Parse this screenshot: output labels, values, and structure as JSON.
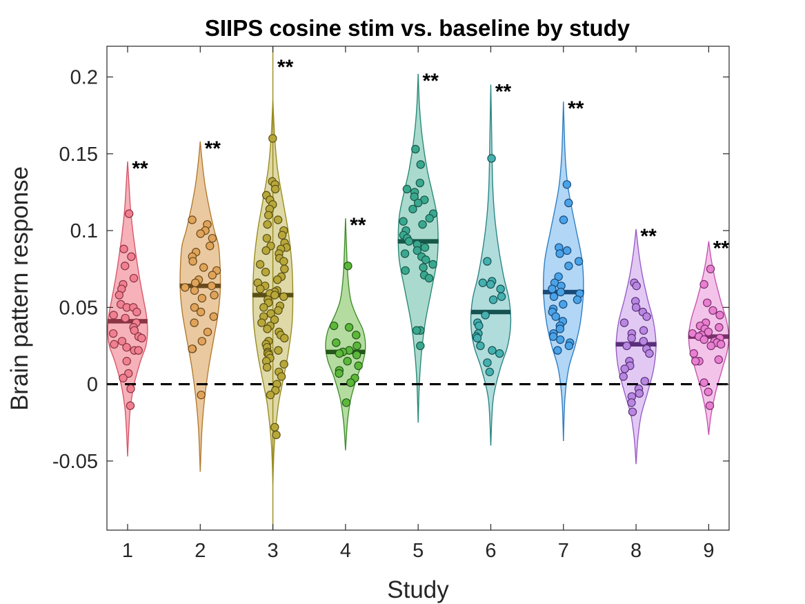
{
  "chart_data": {
    "type": "violin",
    "title": "SIIPS cosine stim vs. baseline by study",
    "xlabel": "Study",
    "ylabel": "Brain pattern response",
    "categories": [
      "1",
      "2",
      "3",
      "4",
      "5",
      "6",
      "7",
      "8",
      "9"
    ],
    "ylim": [
      -0.095,
      0.22
    ],
    "yticks": [
      -0.05,
      0,
      0.05,
      0.1,
      0.15,
      0.2
    ],
    "ytick_labels": [
      "-0.05",
      "0",
      "0.05",
      "0.1",
      "0.15",
      "0.2"
    ],
    "reference_line": {
      "y": 0,
      "style": "dashed",
      "color": "#000000"
    },
    "grid": false,
    "series": [
      {
        "category": "1",
        "fill": "#f4a3ad",
        "stroke": "#d9566a",
        "dot": "#f08091",
        "median_color": "#8a3444",
        "median": 0.041,
        "significance": "**",
        "range": [
          -0.047,
          0.145
        ],
        "density": [
          [
            -0.047,
            0.0
          ],
          [
            -0.03,
            0.05
          ],
          [
            -0.015,
            0.12
          ],
          [
            0.0,
            0.28
          ],
          [
            0.015,
            0.55
          ],
          [
            0.025,
            0.78
          ],
          [
            0.035,
            0.85
          ],
          [
            0.045,
            0.8
          ],
          [
            0.055,
            0.68
          ],
          [
            0.07,
            0.5
          ],
          [
            0.085,
            0.35
          ],
          [
            0.1,
            0.22
          ],
          [
            0.115,
            0.12
          ],
          [
            0.13,
            0.06
          ],
          [
            0.145,
            0.0
          ]
        ],
        "points": [
          0.111,
          0.088,
          0.083,
          0.077,
          0.069,
          0.065,
          0.062,
          0.058,
          0.052,
          0.05,
          0.05,
          0.047,
          0.045,
          0.043,
          0.04,
          0.037,
          0.035,
          0.033,
          0.031,
          0.03,
          0.028,
          0.026,
          0.024,
          0.022,
          0.022,
          0.015,
          0.007,
          0.004,
          -0.003,
          -0.014
        ]
      },
      {
        "category": "2",
        "fill": "#e8c08f",
        "stroke": "#b37a2f",
        "dot": "#e0a35a",
        "median_color": "#6a4a1c",
        "median": 0.064,
        "significance": "**",
        "range": [
          -0.057,
          0.158
        ],
        "density": [
          [
            -0.057,
            0.0
          ],
          [
            -0.03,
            0.07
          ],
          [
            -0.01,
            0.18
          ],
          [
            0.01,
            0.35
          ],
          [
            0.03,
            0.58
          ],
          [
            0.045,
            0.75
          ],
          [
            0.06,
            0.85
          ],
          [
            0.075,
            0.85
          ],
          [
            0.09,
            0.78
          ],
          [
            0.1,
            0.6
          ],
          [
            0.115,
            0.38
          ],
          [
            0.13,
            0.2
          ],
          [
            0.145,
            0.08
          ],
          [
            0.158,
            0.0
          ]
        ],
        "points": [
          0.107,
          0.104,
          0.1,
          0.098,
          0.095,
          0.09,
          0.086,
          0.083,
          0.08,
          0.076,
          0.074,
          0.071,
          0.068,
          0.066,
          0.064,
          0.063,
          0.061,
          0.058,
          0.056,
          0.05,
          0.047,
          0.044,
          0.04,
          0.034,
          0.028,
          0.023,
          0.023,
          -0.007
        ]
      },
      {
        "category": "3",
        "fill": "#d9d198",
        "stroke": "#9a8c1e",
        "dot": "#b8a83a",
        "median_color": "#5a5014",
        "median": 0.058,
        "significance": "**",
        "range": [
          -0.065,
          0.185
        ],
        "whisker": [
          -0.095,
          0.22
        ],
        "density": [
          [
            -0.065,
            0.0
          ],
          [
            -0.04,
            0.06
          ],
          [
            -0.015,
            0.22
          ],
          [
            0.0,
            0.4
          ],
          [
            0.02,
            0.65
          ],
          [
            0.04,
            0.82
          ],
          [
            0.06,
            0.85
          ],
          [
            0.08,
            0.8
          ],
          [
            0.1,
            0.65
          ],
          [
            0.12,
            0.42
          ],
          [
            0.14,
            0.2
          ],
          [
            0.16,
            0.08
          ],
          [
            0.185,
            0.0
          ]
        ],
        "points": [
          0.16,
          0.132,
          0.13,
          0.127,
          0.123,
          0.12,
          0.117,
          0.114,
          0.11,
          0.107,
          0.104,
          0.1,
          0.097,
          0.095,
          0.092,
          0.09,
          0.089,
          0.088,
          0.087,
          0.085,
          0.082,
          0.08,
          0.078,
          0.075,
          0.073,
          0.07,
          0.068,
          0.066,
          0.064,
          0.062,
          0.061,
          0.06,
          0.059,
          0.058,
          0.057,
          0.055,
          0.053,
          0.051,
          0.05,
          0.048,
          0.046,
          0.044,
          0.042,
          0.04,
          0.038,
          0.036,
          0.034,
          0.032,
          0.03,
          0.028,
          0.026,
          0.024,
          0.022,
          0.021,
          0.02,
          0.019,
          0.017,
          0.015,
          0.013,
          0.011,
          0.008,
          0.005,
          0.0,
          -0.004,
          -0.007,
          -0.028,
          -0.033
        ]
      },
      {
        "category": "4",
        "fill": "#a8d68f",
        "stroke": "#3f8f2a",
        "dot": "#5cb83a",
        "median_color": "#24571a",
        "median": 0.021,
        "significance": "**",
        "range": [
          -0.043,
          0.108
        ],
        "density": [
          [
            -0.043,
            0.0
          ],
          [
            -0.025,
            0.08
          ],
          [
            -0.01,
            0.22
          ],
          [
            0.005,
            0.5
          ],
          [
            0.015,
            0.75
          ],
          [
            0.025,
            0.85
          ],
          [
            0.035,
            0.75
          ],
          [
            0.045,
            0.45
          ],
          [
            0.055,
            0.22
          ],
          [
            0.07,
            0.1
          ],
          [
            0.09,
            0.04
          ],
          [
            0.108,
            0.0
          ]
        ],
        "points": [
          0.077,
          0.038,
          0.037,
          0.032,
          0.027,
          0.025,
          0.022,
          0.021,
          0.02,
          0.019,
          0.015,
          0.012,
          0.009,
          0.007,
          0.004,
          0.001,
          -0.012
        ]
      },
      {
        "category": "5",
        "fill": "#9ad4c4",
        "stroke": "#2a8a76",
        "dot": "#3aa88e",
        "median_color": "#17574a",
        "median": 0.093,
        "significance": "**",
        "range": [
          -0.025,
          0.202
        ],
        "density": [
          [
            -0.025,
            0.0
          ],
          [
            0.0,
            0.05
          ],
          [
            0.02,
            0.14
          ],
          [
            0.04,
            0.3
          ],
          [
            0.06,
            0.55
          ],
          [
            0.08,
            0.8
          ],
          [
            0.095,
            0.85
          ],
          [
            0.11,
            0.8
          ],
          [
            0.125,
            0.6
          ],
          [
            0.14,
            0.38
          ],
          [
            0.16,
            0.18
          ],
          [
            0.18,
            0.06
          ],
          [
            0.202,
            0.0
          ]
        ],
        "points": [
          0.153,
          0.143,
          0.131,
          0.127,
          0.125,
          0.122,
          0.12,
          0.118,
          0.114,
          0.111,
          0.108,
          0.106,
          0.104,
          0.1,
          0.097,
          0.095,
          0.093,
          0.091,
          0.089,
          0.087,
          0.085,
          0.083,
          0.081,
          0.078,
          0.076,
          0.074,
          0.071,
          0.069,
          0.035,
          0.035,
          0.025
        ]
      },
      {
        "category": "6",
        "fill": "#a3d6d6",
        "stroke": "#2a8585",
        "dot": "#45b0b0",
        "median_color": "#175252",
        "median": 0.047,
        "significance": "**",
        "range": [
          -0.04,
          0.195
        ],
        "density": [
          [
            -0.04,
            0.0
          ],
          [
            -0.01,
            0.1
          ],
          [
            0.01,
            0.4
          ],
          [
            0.025,
            0.72
          ],
          [
            0.04,
            0.85
          ],
          [
            0.055,
            0.78
          ],
          [
            0.07,
            0.55
          ],
          [
            0.09,
            0.32
          ],
          [
            0.11,
            0.16
          ],
          [
            0.13,
            0.08
          ],
          [
            0.16,
            0.04
          ],
          [
            0.195,
            0.0
          ]
        ],
        "points": [
          0.147,
          0.08,
          0.067,
          0.066,
          0.065,
          0.062,
          0.057,
          0.055,
          0.045,
          0.04,
          0.038,
          0.033,
          0.031,
          0.03,
          0.025,
          0.022,
          0.02,
          0.014,
          0.008
        ]
      },
      {
        "category": "7",
        "fill": "#a3cff5",
        "stroke": "#2f7fc4",
        "dot": "#4aa3e8",
        "median_color": "#1a4a7a",
        "median": 0.06,
        "significance": "**",
        "range": [
          -0.037,
          0.184
        ],
        "density": [
          [
            -0.037,
            0.0
          ],
          [
            -0.01,
            0.06
          ],
          [
            0.01,
            0.22
          ],
          [
            0.025,
            0.5
          ],
          [
            0.04,
            0.72
          ],
          [
            0.06,
            0.85
          ],
          [
            0.08,
            0.8
          ],
          [
            0.1,
            0.55
          ],
          [
            0.115,
            0.35
          ],
          [
            0.13,
            0.18
          ],
          [
            0.15,
            0.07
          ],
          [
            0.184,
            0.0
          ]
        ],
        "points": [
          0.13,
          0.118,
          0.107,
          0.089,
          0.087,
          0.085,
          0.08,
          0.077,
          0.07,
          0.066,
          0.064,
          0.062,
          0.06,
          0.059,
          0.057,
          0.055,
          0.052,
          0.049,
          0.047,
          0.044,
          0.041,
          0.038,
          0.036,
          0.033,
          0.031,
          0.029,
          0.027,
          0.025,
          0.022
        ]
      },
      {
        "category": "8",
        "fill": "#dcbff2",
        "stroke": "#9a5cc8",
        "dot": "#b888e0",
        "median_color": "#5a2f7a",
        "median": 0.026,
        "significance": "**",
        "range": [
          -0.052,
          0.101
        ],
        "density": [
          [
            -0.052,
            0.0
          ],
          [
            -0.035,
            0.08
          ],
          [
            -0.02,
            0.22
          ],
          [
            -0.005,
            0.5
          ],
          [
            0.01,
            0.75
          ],
          [
            0.025,
            0.85
          ],
          [
            0.04,
            0.75
          ],
          [
            0.055,
            0.5
          ],
          [
            0.07,
            0.28
          ],
          [
            0.085,
            0.12
          ],
          [
            0.101,
            0.0
          ]
        ],
        "points": [
          0.066,
          0.064,
          0.054,
          0.05,
          0.047,
          0.044,
          0.04,
          0.035,
          0.033,
          0.03,
          0.028,
          0.025,
          0.023,
          0.02,
          0.015,
          0.012,
          0.01,
          0.005,
          0.002,
          -0.003,
          -0.006,
          -0.008,
          -0.012,
          -0.018
        ]
      },
      {
        "category": "9",
        "fill": "#f2b8e6",
        "stroke": "#c855b0",
        "dot": "#e87fd0",
        "median_color": "#7a2f6a",
        "median": 0.031,
        "significance": "**",
        "range": [
          -0.033,
          0.093
        ],
        "density": [
          [
            -0.033,
            0.0
          ],
          [
            -0.02,
            0.1
          ],
          [
            -0.005,
            0.3
          ],
          [
            0.01,
            0.58
          ],
          [
            0.022,
            0.8
          ],
          [
            0.032,
            0.85
          ],
          [
            0.042,
            0.75
          ],
          [
            0.055,
            0.5
          ],
          [
            0.07,
            0.25
          ],
          [
            0.082,
            0.1
          ],
          [
            0.093,
            0.0
          ]
        ],
        "points": [
          0.075,
          0.065,
          0.053,
          0.048,
          0.045,
          0.04,
          0.038,
          0.037,
          0.036,
          0.034,
          0.033,
          0.032,
          0.031,
          0.03,
          0.029,
          0.028,
          0.027,
          0.026,
          0.025,
          0.02,
          0.016,
          0.015,
          0.015,
          0.001,
          -0.005,
          -0.014
        ]
      }
    ]
  }
}
